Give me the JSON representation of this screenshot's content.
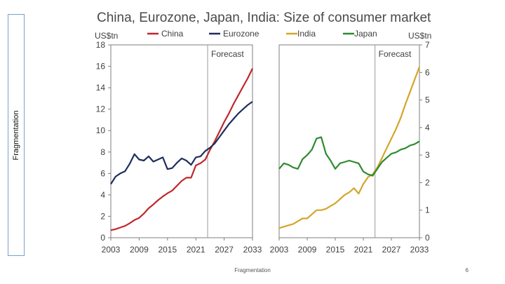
{
  "sidebar": {
    "label": "Fragmentation"
  },
  "footer": {
    "label": "Fragmentation",
    "page": "6"
  },
  "colors": {
    "China": "#c0272d",
    "Eurozone": "#1f2d5c",
    "India": "#d4a52a",
    "Japan": "#2e8b2e",
    "forecast_line": "#999999",
    "axis": "#7f7f7f"
  },
  "chart_data": {
    "title": "China, Eurozone, Japan, India: Size of consumer market",
    "charts": [
      {
        "type": "line",
        "ylabel": "US$tn",
        "ylim": [
          0,
          18
        ],
        "yticks": [
          0,
          2,
          4,
          6,
          8,
          10,
          12,
          14,
          16,
          18
        ],
        "xlim": [
          2003,
          2033
        ],
        "xticks": [
          2003,
          2009,
          2015,
          2021,
          2027,
          2033
        ],
        "forecast_year": 2023.5,
        "forecast_label": "Forecast",
        "series": [
          {
            "name": "China",
            "color": "#c0272d",
            "x": [
              2003,
              2004,
              2005,
              2006,
              2007,
              2008,
              2009,
              2010,
              2011,
              2012,
              2013,
              2014,
              2015,
              2016,
              2017,
              2018,
              2019,
              2020,
              2021,
              2022,
              2023,
              2024,
              2025,
              2026,
              2027,
              2028,
              2029,
              2030,
              2031,
              2032,
              2033
            ],
            "y": [
              0.7,
              0.8,
              0.95,
              1.1,
              1.35,
              1.65,
              1.85,
              2.25,
              2.75,
              3.1,
              3.5,
              3.85,
              4.15,
              4.4,
              4.85,
              5.3,
              5.6,
              5.6,
              6.75,
              6.95,
              7.3,
              8.2,
              9.0,
              9.9,
              10.8,
              11.6,
              12.5,
              13.3,
              14.1,
              14.9,
              15.8
            ]
          },
          {
            "name": "Eurozone",
            "color": "#1f2d5c",
            "x": [
              2003,
              2004,
              2005,
              2006,
              2007,
              2008,
              2009,
              2010,
              2011,
              2012,
              2013,
              2014,
              2015,
              2016,
              2017,
              2018,
              2019,
              2020,
              2021,
              2022,
              2023,
              2024,
              2025,
              2026,
              2027,
              2028,
              2029,
              2030,
              2031,
              2032,
              2033
            ],
            "y": [
              5.0,
              5.7,
              6.0,
              6.2,
              6.9,
              7.8,
              7.3,
              7.2,
              7.6,
              7.1,
              7.3,
              7.5,
              6.4,
              6.5,
              7.0,
              7.4,
              7.2,
              6.8,
              7.5,
              7.6,
              8.1,
              8.4,
              8.8,
              9.4,
              10.0,
              10.6,
              11.1,
              11.6,
              12.0,
              12.4,
              12.7
            ]
          }
        ]
      },
      {
        "type": "line",
        "ylabel": "US$tn",
        "ylim": [
          0,
          7
        ],
        "yticks": [
          0,
          1,
          2,
          3,
          4,
          5,
          6,
          7
        ],
        "xlim": [
          2003,
          2033
        ],
        "xticks": [
          2003,
          2009,
          2015,
          2021,
          2027,
          2033
        ],
        "forecast_year": 2023.5,
        "forecast_label": "Forecast",
        "series": [
          {
            "name": "India",
            "color": "#d4a52a",
            "x": [
              2003,
              2004,
              2005,
              2006,
              2007,
              2008,
              2009,
              2010,
              2011,
              2012,
              2013,
              2014,
              2015,
              2016,
              2017,
              2018,
              2019,
              2020,
              2021,
              2022,
              2023,
              2024,
              2025,
              2026,
              2027,
              2028,
              2029,
              2030,
              2031,
              2032,
              2033
            ],
            "y": [
              0.35,
              0.4,
              0.45,
              0.5,
              0.6,
              0.7,
              0.7,
              0.85,
              1.0,
              1.0,
              1.05,
              1.15,
              1.25,
              1.4,
              1.55,
              1.65,
              1.8,
              1.6,
              1.95,
              2.2,
              2.3,
              2.55,
              2.9,
              3.25,
              3.6,
              3.95,
              4.35,
              4.85,
              5.3,
              5.75,
              6.2
            ]
          },
          {
            "name": "Japan",
            "color": "#2e8b2e",
            "x": [
              2003,
              2004,
              2005,
              2006,
              2007,
              2008,
              2009,
              2010,
              2011,
              2012,
              2013,
              2014,
              2015,
              2016,
              2017,
              2018,
              2019,
              2020,
              2021,
              2022,
              2023,
              2024,
              2025,
              2026,
              2027,
              2028,
              2029,
              2030,
              2031,
              2032,
              2033
            ],
            "y": [
              2.5,
              2.7,
              2.65,
              2.55,
              2.5,
              2.85,
              3.0,
              3.2,
              3.6,
              3.65,
              3.05,
              2.8,
              2.5,
              2.7,
              2.75,
              2.8,
              2.75,
              2.7,
              2.4,
              2.3,
              2.25,
              2.5,
              2.75,
              2.9,
              3.05,
              3.1,
              3.2,
              3.25,
              3.35,
              3.4,
              3.5
            ]
          }
        ]
      }
    ]
  }
}
